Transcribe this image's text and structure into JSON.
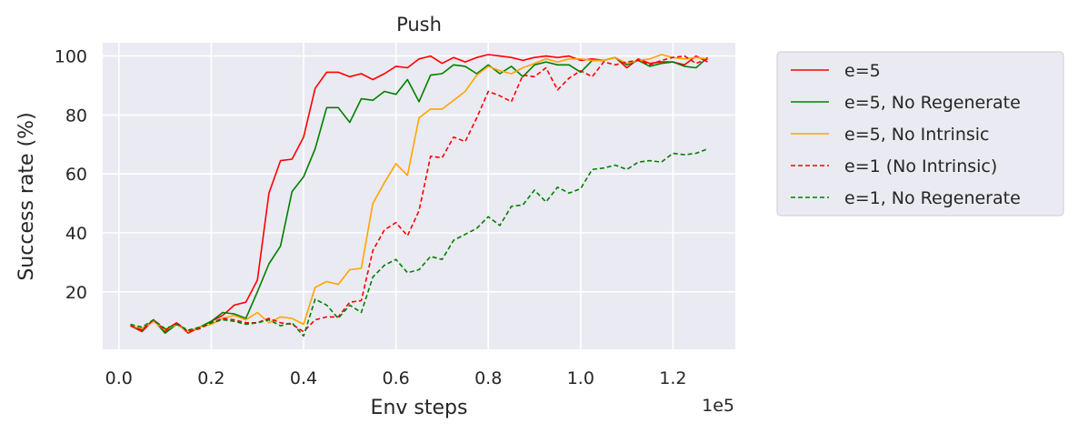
{
  "chart_data": {
    "type": "line",
    "title": "Push",
    "xlabel": "Env steps",
    "ylabel": "Success rate (%)",
    "x_scale_label": "1e5",
    "xlim": [
      -0.035,
      1.335
    ],
    "ylim": [
      0.5,
      104.5
    ],
    "x_ticks": [
      0.0,
      0.2,
      0.4,
      0.6,
      0.8,
      1.0,
      1.2
    ],
    "x_tick_labels": [
      "0.0",
      "0.2",
      "0.4",
      "0.6",
      "0.8",
      "1.0",
      "1.2"
    ],
    "y_ticks": [
      20,
      40,
      60,
      80,
      100
    ],
    "y_tick_labels": [
      "20",
      "40",
      "60",
      "80",
      "100"
    ],
    "grid": true,
    "legend_position": "outside-right",
    "x": [
      0.025,
      0.05,
      0.075,
      0.1,
      0.125,
      0.15,
      0.175,
      0.2,
      0.225,
      0.25,
      0.275,
      0.3,
      0.325,
      0.35,
      0.375,
      0.4,
      0.425,
      0.45,
      0.475,
      0.5,
      0.525,
      0.55,
      0.575,
      0.6,
      0.625,
      0.65,
      0.675,
      0.7,
      0.725,
      0.75,
      0.775,
      0.8,
      0.825,
      0.85,
      0.875,
      0.9,
      0.925,
      0.95,
      0.975,
      1.0,
      1.025,
      1.05,
      1.075,
      1.1,
      1.125,
      1.15,
      1.175,
      1.2,
      1.225,
      1.25,
      1.275
    ],
    "series": [
      {
        "name": "e=5",
        "color": "#ff0000",
        "dash": "solid",
        "values": [
          8.5,
          6.5,
          10.5,
          6.5,
          9.5,
          6,
          8,
          10,
          12,
          15.5,
          16.5,
          24,
          53.5,
          64.5,
          65,
          72.5,
          89,
          94.5,
          94.5,
          93,
          94,
          92,
          94,
          96.5,
          96,
          99,
          100,
          97.5,
          99.5,
          98,
          99.5,
          100.5,
          100,
          99.5,
          98.5,
          99.5,
          100,
          99.5,
          100,
          98.5,
          99,
          98.5,
          99.5,
          96,
          99,
          97.5,
          98,
          98,
          97,
          100,
          98
        ]
      },
      {
        "name": "e=5, No Regenerate",
        "color": "#008000",
        "dash": "solid",
        "values": [
          8.5,
          7,
          10.5,
          6,
          9,
          6.5,
          8,
          10,
          13,
          12.5,
          11,
          20,
          29.5,
          35.5,
          54,
          59,
          68.5,
          82.5,
          82.5,
          77.5,
          85.5,
          85,
          88,
          87,
          92,
          84.5,
          93.5,
          94,
          97,
          96.5,
          94,
          97,
          94,
          96.5,
          93,
          97,
          98,
          97,
          97,
          94.5,
          98.5,
          98.5,
          99.5,
          97,
          98.5,
          96.5,
          97.5,
          98,
          96.5,
          96,
          99.5
        ]
      },
      {
        "name": "e=5, No Intrinsic",
        "color": "#ffa500",
        "dash": "solid",
        "values": [
          8.5,
          7.5,
          10,
          7,
          9,
          6.5,
          8,
          9,
          11,
          12,
          10.5,
          13,
          9.5,
          11.5,
          11,
          9,
          21.5,
          23.5,
          22.5,
          27.5,
          28,
          50,
          57,
          63.5,
          59.5,
          79,
          82,
          82,
          85,
          88,
          93.5,
          96.5,
          95,
          94,
          96,
          97.5,
          99,
          98,
          99,
          99,
          98.5,
          98.5,
          99.5,
          97.5,
          98.5,
          99,
          100.5,
          99.5,
          99,
          99.5,
          99
        ]
      },
      {
        "name": "e=1 (No Intrinsic)",
        "color": "#ff0000",
        "dash": "dashed",
        "values": [
          8.5,
          7,
          10.5,
          7,
          9.5,
          6.5,
          7.5,
          9.5,
          11,
          10.5,
          9.5,
          9.5,
          11,
          9.5,
          9,
          6.5,
          10.5,
          11.5,
          11.5,
          16.5,
          17,
          34,
          41,
          43.5,
          39,
          47.5,
          66,
          65.5,
          72.5,
          71,
          79,
          88,
          86.5,
          84.5,
          93.5,
          93,
          96,
          88.5,
          92.5,
          95,
          93,
          98,
          97,
          98,
          98.5,
          97,
          98.5,
          99.5,
          100,
          97.5,
          99
        ]
      },
      {
        "name": "e=1, No Regenerate",
        "color": "#008000",
        "dash": "dashed",
        "values": [
          9,
          8,
          10.5,
          7.5,
          9,
          7,
          8,
          9.5,
          10.5,
          10,
          9,
          9.5,
          10.5,
          8.5,
          9.5,
          5,
          17.5,
          15.5,
          11,
          15.5,
          13,
          25,
          29,
          31,
          26.5,
          27.5,
          32,
          31,
          37.5,
          39.5,
          41.5,
          45.5,
          42.5,
          49,
          49.5,
          54.5,
          50.5,
          55.5,
          53.5,
          55,
          61.5,
          62,
          63,
          61.5,
          64,
          64.5,
          64,
          67,
          66.5,
          67,
          68.5
        ]
      }
    ]
  }
}
